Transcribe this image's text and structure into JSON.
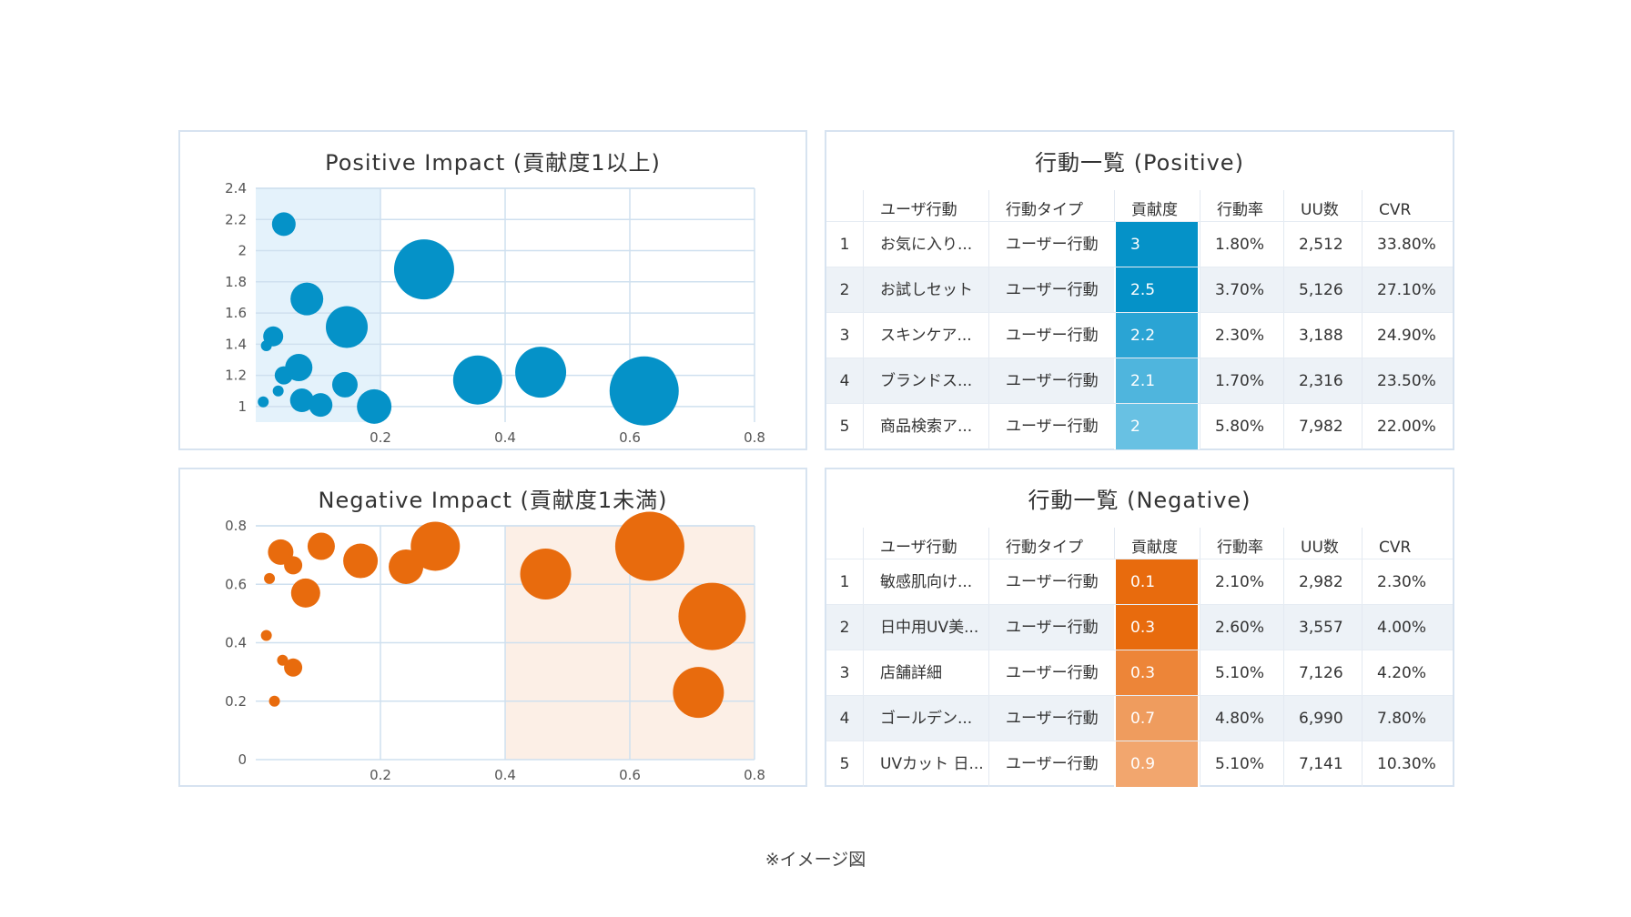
{
  "chart_data": [
    {
      "type": "scatter",
      "title": "Positive Impact (貢献度1以上)",
      "xlim": [
        0,
        0.8
      ],
      "ylim": [
        0.9,
        2.4
      ],
      "x_ticks": [
        "0.2",
        "0.4",
        "0.6",
        "0.8"
      ],
      "y_ticks": [
        "1",
        "1.2",
        "1.4",
        "1.6",
        "1.8",
        "2",
        "2.2",
        "2.4"
      ],
      "highlight_x_range": [
        0,
        0.2
      ],
      "grid": true,
      "color": "#0592c8",
      "highlight_color": "#e4f2fb",
      "points": [
        {
          "x": 0.045,
          "y": 2.17,
          "size": 13
        },
        {
          "x": 0.27,
          "y": 1.88,
          "size": 33
        },
        {
          "x": 0.082,
          "y": 1.69,
          "size": 18
        },
        {
          "x": 0.146,
          "y": 1.51,
          "size": 23
        },
        {
          "x": 0.028,
          "y": 1.45,
          "size": 11
        },
        {
          "x": 0.017,
          "y": 1.39,
          "size": 6
        },
        {
          "x": 0.069,
          "y": 1.25,
          "size": 15
        },
        {
          "x": 0.045,
          "y": 1.2,
          "size": 10
        },
        {
          "x": 0.036,
          "y": 1.1,
          "size": 6
        },
        {
          "x": 0.012,
          "y": 1.03,
          "size": 6
        },
        {
          "x": 0.074,
          "y": 1.04,
          "size": 13
        },
        {
          "x": 0.104,
          "y": 1.01,
          "size": 13
        },
        {
          "x": 0.143,
          "y": 1.14,
          "size": 14
        },
        {
          "x": 0.19,
          "y": 1.0,
          "size": 19
        },
        {
          "x": 0.356,
          "y": 1.17,
          "size": 27
        },
        {
          "x": 0.457,
          "y": 1.22,
          "size": 28
        },
        {
          "x": 0.623,
          "y": 1.1,
          "size": 38
        }
      ]
    },
    {
      "type": "scatter",
      "title": "Negative Impact (貢献度1未満)",
      "xlim": [
        0,
        0.8
      ],
      "ylim": [
        0,
        0.8
      ],
      "x_ticks": [
        "0.2",
        "0.4",
        "0.6",
        "0.8"
      ],
      "y_ticks": [
        "0",
        "0.2",
        "0.4",
        "0.6",
        "0.8"
      ],
      "highlight_x_range": [
        0.4,
        0.8
      ],
      "grid": true,
      "color": "#e86b0d",
      "highlight_color": "#fcefe6",
      "points": [
        {
          "x": 0.04,
          "y": 0.71,
          "size": 14
        },
        {
          "x": 0.105,
          "y": 0.73,
          "size": 15
        },
        {
          "x": 0.168,
          "y": 0.68,
          "size": 19
        },
        {
          "x": 0.06,
          "y": 0.665,
          "size": 10
        },
        {
          "x": 0.022,
          "y": 0.62,
          "size": 6
        },
        {
          "x": 0.08,
          "y": 0.57,
          "size": 16
        },
        {
          "x": 0.241,
          "y": 0.66,
          "size": 19
        },
        {
          "x": 0.288,
          "y": 0.73,
          "size": 27
        },
        {
          "x": 0.465,
          "y": 0.635,
          "size": 28
        },
        {
          "x": 0.632,
          "y": 0.73,
          "size": 38
        },
        {
          "x": 0.732,
          "y": 0.49,
          "size": 37
        },
        {
          "x": 0.71,
          "y": 0.23,
          "size": 28
        },
        {
          "x": 0.017,
          "y": 0.425,
          "size": 6
        },
        {
          "x": 0.043,
          "y": 0.34,
          "size": 6
        },
        {
          "x": 0.06,
          "y": 0.315,
          "size": 10
        },
        {
          "x": 0.03,
          "y": 0.2,
          "size": 6
        }
      ]
    },
    {
      "type": "table",
      "title": "行動一覧 (Positive)",
      "headers": [
        "",
        "ユーザ行動",
        "行動タイプ",
        "貢献度",
        "行動率",
        "UU数",
        "CVR"
      ],
      "rows": [
        [
          "1",
          "お気に入り...",
          "ユーザー行動",
          "3",
          "1.80%",
          "2,512",
          "33.80%"
        ],
        [
          "2",
          "お試しセット",
          "ユーザー行動",
          "2.5",
          "3.70%",
          "5,126",
          "27.10%"
        ],
        [
          "3",
          "スキンケア...",
          "ユーザー行動",
          "2.2",
          "2.30%",
          "3,188",
          "24.90%"
        ],
        [
          "4",
          "ブランドス...",
          "ユーザー行動",
          "2.1",
          "1.70%",
          "2,316",
          "23.50%"
        ],
        [
          "5",
          "商品検索ア...",
          "ユーザー行動",
          "2",
          "5.80%",
          "7,982",
          "22.00%"
        ]
      ],
      "score_colors": [
        "#0592c8",
        "#0592c8",
        "#2aa4d4",
        "#4fb5dd",
        "#68c1e3"
      ]
    },
    {
      "type": "table",
      "title": "行動一覧 (Negative)",
      "headers": [
        "",
        "ユーザ行動",
        "行動タイプ",
        "貢献度",
        "行動率",
        "UU数",
        "CVR"
      ],
      "rows": [
        [
          "1",
          "敏感肌向け...",
          "ユーザー行動",
          "0.1",
          "2.10%",
          "2,982",
          "2.30%"
        ],
        [
          "2",
          "日中用UV美...",
          "ユーザー行動",
          "0.3",
          "2.60%",
          "3,557",
          "4.00%"
        ],
        [
          "3",
          "店舗詳細",
          "ユーザー行動",
          "0.3",
          "5.10%",
          "7,126",
          "4.20%"
        ],
        [
          "4",
          "ゴールデン...",
          "ユーザー行動",
          "0.7",
          "4.80%",
          "6,990",
          "7.80%"
        ],
        [
          "5",
          "UVカット 日...",
          "ユーザー行動",
          "0.9",
          "5.10%",
          "7,141",
          "10.30%"
        ]
      ],
      "score_colors": [
        "#e86b0d",
        "#e86b0d",
        "#ed8538",
        "#ef9c5e",
        "#f2a66e"
      ]
    }
  ],
  "caption": "※イメージ図"
}
